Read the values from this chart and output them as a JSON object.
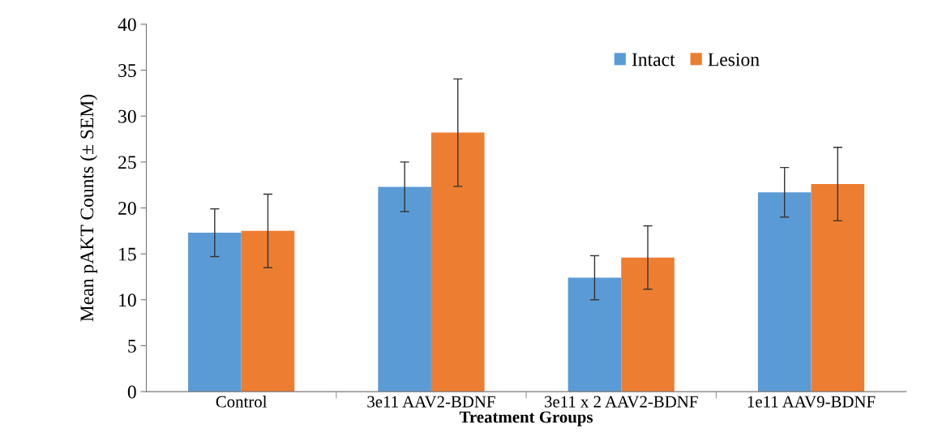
{
  "chart_data": {
    "type": "bar",
    "xlabel": "Treatment Groups",
    "ylabel": "Mean pAKT Counts (± SEM)",
    "categories": [
      "Control",
      "3e11 AAV2-BDNF",
      "3e11 x 2 AAV2-BDNF",
      "1e11 AAV9-BDNF"
    ],
    "series": [
      {
        "name": "Intact",
        "color": "#5b9bd5",
        "values": [
          17.3,
          22.3,
          12.4,
          21.7
        ],
        "errors": [
          2.6,
          2.7,
          2.4,
          2.7
        ]
      },
      {
        "name": "Lesion",
        "color": "#ed7d31",
        "values": [
          17.5,
          28.2,
          14.6,
          22.6
        ],
        "errors": [
          4.0,
          5.85,
          3.45,
          4.0
        ]
      }
    ],
    "ylim": [
      0,
      40
    ],
    "yticks": [
      0,
      5,
      10,
      15,
      20,
      25,
      30,
      35,
      40
    ],
    "grid": false,
    "legend": "top right"
  }
}
